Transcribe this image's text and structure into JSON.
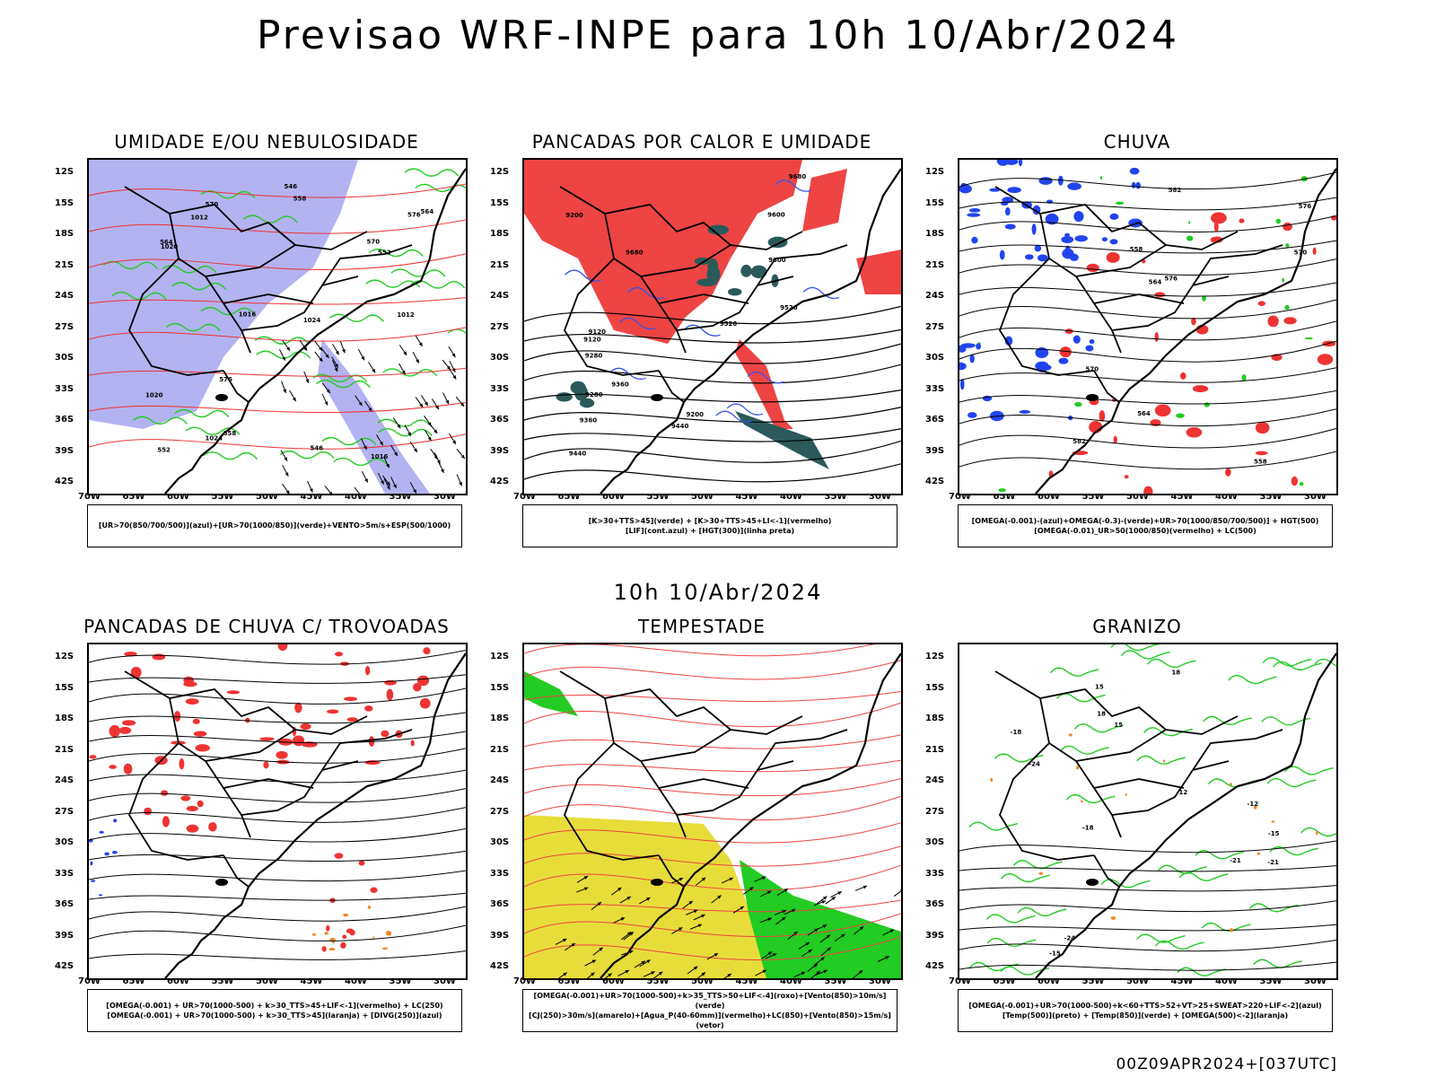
{
  "main_title": "Previsao WRF-INPE  para 10h 10/Abr/2024",
  "mid_title": "10h 10/Abr/2024",
  "footer": "00Z09APR2024+[037UTC]",
  "lat_labels": [
    "12S",
    "15S",
    "18S",
    "21S",
    "24S",
    "27S",
    "30S",
    "33S",
    "36S",
    "39S",
    "42S"
  ],
  "lon_labels": [
    "70W",
    "65W",
    "60W",
    "55W",
    "50W",
    "45W",
    "40W",
    "35W",
    "30W"
  ],
  "panels": [
    {
      "title": "UMIDADE E/OU NEBULOSIDADE",
      "legend": [
        "[UR>70(850/700/500)](azul)+[UR>70(1000/850)](verde)+VENTO>5m/s+ESP(500/1000)"
      ],
      "colors": {
        "fill": "#9a9aee",
        "line": "#22cc22",
        "line2": "#ee3333"
      },
      "contour_labels": [
        "1012",
        "1016",
        "1020",
        "1024",
        "576",
        "570",
        "564",
        "558",
        "552",
        "546"
      ]
    },
    {
      "title": "PANCADAS POR CALOR E UMIDADE",
      "legend": [
        "[K>30+TTS>45](verde) + [K>30+TTS>45+LI<-1](vermelho)",
        "[LIF](cont.azul) + [HGT(300)](linha preta)"
      ],
      "colors": {
        "fill": "#ee4444",
        "dark": "#2b5a5a",
        "line": "#3355ee"
      },
      "contour_labels": [
        "9680",
        "9600",
        "9520",
        "9440",
        "9360",
        "9280",
        "9200",
        "9120"
      ]
    },
    {
      "title": "CHUVA",
      "legend": [
        "[OMEGA(-0.001)-(azul)+OMEGA(-0.3)-(verde)+UR>70(1000/850/700/500)] + HGT(500)",
        "[OMEGA(-0.01)_UR>50(1000/850)(vermelho) + LC(500)"
      ],
      "colors": {
        "blue": "#2244ee",
        "green": "#22cc22",
        "red": "#ee3333"
      },
      "contour_labels": [
        "582",
        "576",
        "570",
        "564",
        "558"
      ]
    },
    {
      "title": "PANCADAS DE CHUVA C/ TROVOADAS",
      "legend": [
        "[OMEGA(-0.001) + UR>70(1000-500) + k>30_TTS>45+LIF<-1](vermelho) + LC(250)",
        "[OMEGA(-0.001) + UR>70(1000-500) + k>30_TTS>45](laranja) + [DIVG(250)](azul)"
      ],
      "colors": {
        "red": "#ee3333",
        "orange": "#ee8822",
        "blue": "#2244ee"
      },
      "contour_labels": []
    },
    {
      "title": "TEMPESTADE",
      "legend": [
        "[OMEGA(-0.001)+UR>70(1000-500)+k>35_TTS>50+LIF<-4](roxo)+[Vento(850)>10m/s](verde)",
        "[CJ(250)>30m/s](amarelo)+[Agua_P(40-60mm)](vermelho)+LC(850)+[Vento(850)>15m/s](vetor)"
      ],
      "colors": {
        "yellow": "#e8dc3a",
        "green": "#22cc22",
        "red": "#ee4444"
      },
      "contour_labels": []
    },
    {
      "title": "GRANIZO",
      "legend": [
        "[OMEGA(-0.001)+UR>70(1000-500)+k<60+TTS>52+VT>25+SWEAT>220+LIF<-2](azul)",
        "[Temp(500)](preto) + [Temp(850)](verde) + [OMEGA(500)<-2](laranja)"
      ],
      "colors": {
        "green": "#22cc22",
        "orange": "#ee8822"
      },
      "contour_labels": [
        "-12",
        "-15",
        "-18",
        "-21",
        "-24",
        "15",
        "18"
      ]
    }
  ]
}
